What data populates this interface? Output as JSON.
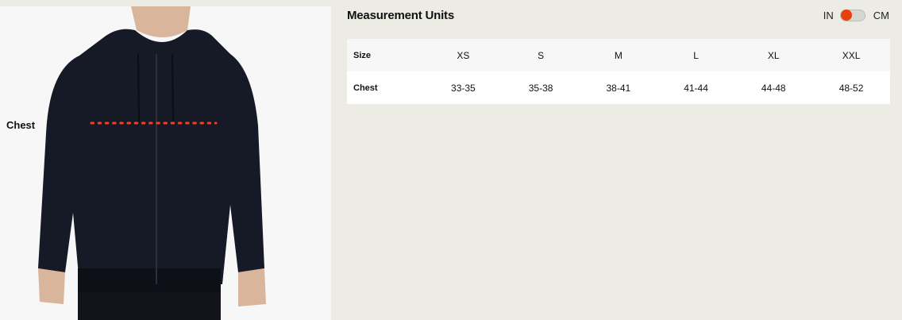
{
  "image": {
    "measure_label": "Chest",
    "measure_line_color": "#ff3b1f"
  },
  "header": {
    "title": "Measurement Units",
    "unit_left": "IN",
    "unit_right": "CM",
    "selected_unit": "IN",
    "accent": "#e8400c"
  },
  "table": {
    "header": {
      "label": "Size",
      "cells": [
        "XS",
        "S",
        "M",
        "L",
        "XL",
        "XXL"
      ]
    },
    "rows": [
      {
        "label": "Chest",
        "cells": [
          "33-35",
          "35-38",
          "38-41",
          "41-44",
          "44-48",
          "48-52"
        ]
      }
    ]
  }
}
